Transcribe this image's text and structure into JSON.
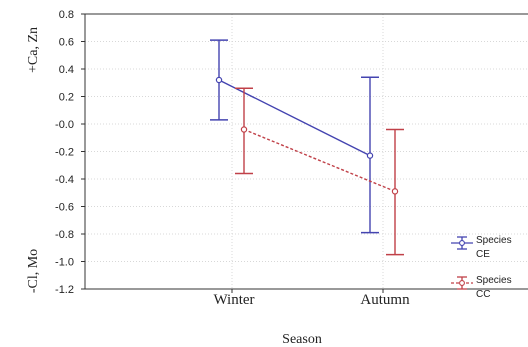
{
  "chart_data": {
    "type": "line",
    "xlabel": "Season",
    "ylabel_top": "+Ca, Zn",
    "ylabel_bottom": "-Cl, Mo",
    "categories": [
      "Winter",
      "Autumn"
    ],
    "ylim": [
      -1.2,
      0.8
    ],
    "yticks": [
      0.8,
      0.6,
      0.4,
      0.2,
      0.0,
      -0.2,
      -0.4,
      -0.6,
      -0.8,
      -1.0,
      -1.2
    ],
    "ytick_labels": [
      "0.8",
      "0.6",
      "0.4",
      "0.2",
      "-0.0",
      "-0.2",
      "-0.4",
      "-0.6",
      "-0.8",
      "-1.0",
      "-1.2"
    ],
    "grid": true,
    "legend_position": "bottom-right",
    "series": [
      {
        "name_lines": [
          "Species",
          "CE"
        ],
        "color": "#4444b0",
        "line_style": "solid",
        "values": [
          0.32,
          -0.23
        ],
        "lower": [
          0.03,
          -0.79
        ],
        "upper": [
          0.61,
          0.34
        ]
      },
      {
        "name_lines": [
          "Species",
          "CC"
        ],
        "color": "#c04048",
        "line_style": "dashed",
        "values": [
          -0.04,
          -0.49
        ],
        "lower": [
          -0.36,
          -0.95
        ],
        "upper": [
          0.26,
          -0.04
        ]
      }
    ]
  }
}
